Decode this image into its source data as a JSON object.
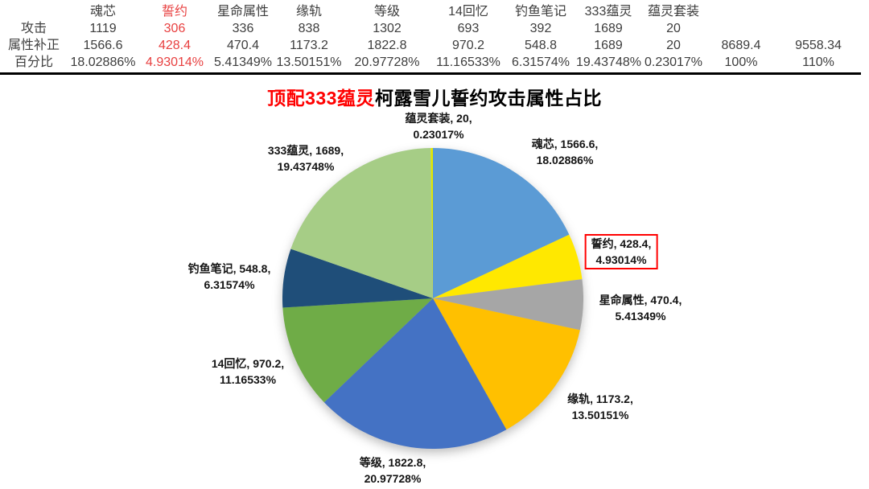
{
  "table": {
    "row_headers": [
      "攻击",
      "属性补正",
      "百分比"
    ],
    "columns": [
      {
        "label": "魂芯",
        "attack": "1119",
        "corrected": "1566.6",
        "percent": "18.02886%",
        "red": false
      },
      {
        "label": "誓约",
        "attack": "306",
        "corrected": "428.4",
        "percent": "4.93014%",
        "red": true
      },
      {
        "label": "星命属性",
        "attack": "336",
        "corrected": "470.4",
        "percent": "5.41349%",
        "red": false
      },
      {
        "label": "缘轨",
        "attack": "838",
        "corrected": "1173.2",
        "percent": "13.50151%",
        "red": false
      },
      {
        "label": "等级",
        "attack": "1302",
        "corrected": "1822.8",
        "percent": "20.97728%",
        "red": false
      },
      {
        "label": "14回忆",
        "attack": "693",
        "corrected": "970.2",
        "percent": "11.16533%",
        "red": false
      },
      {
        "label": "钓鱼笔记",
        "attack": "392",
        "corrected": "548.8",
        "percent": "6.31574%",
        "red": false
      },
      {
        "label": "333蕴灵",
        "attack": "1689",
        "corrected": "1689",
        "percent": "19.43748%",
        "red": false
      },
      {
        "label": "蕴灵套装",
        "attack": "20",
        "corrected": "20",
        "percent": "0.23017%",
        "red": false
      },
      {
        "label": "",
        "attack": "",
        "corrected": "8689.4",
        "percent": "100%",
        "red": false
      },
      {
        "label": "",
        "attack": "",
        "corrected": "9558.34",
        "percent": "110%",
        "red": false
      }
    ]
  },
  "chart": {
    "title_red": "顶配333蕴灵",
    "title_black": "柯露雪儿誓约攻击属性占比"
  },
  "colors": {
    "accent_red": "#ff0000",
    "table_red_text": "#e84040",
    "table_text": "#3d3d3d"
  },
  "chart_data": {
    "type": "pie",
    "title": "顶配333蕴灵柯露雪儿誓约攻击属性占比",
    "direction": "clockwise",
    "start_angle_deg": 0,
    "label_format": "name, value, percent%",
    "legend": "none",
    "series": [
      {
        "name": "魂芯",
        "value": 1566.6,
        "percent": 18.02886,
        "color": "#5B9BD5",
        "highlighted": false
      },
      {
        "name": "誓约",
        "value": 428.4,
        "percent": 4.93014,
        "color": "#FFE800",
        "highlighted": true
      },
      {
        "name": "星命属性",
        "value": 470.4,
        "percent": 5.41349,
        "color": "#A6A6A6",
        "highlighted": false
      },
      {
        "name": "缘轨",
        "value": 1173.2,
        "percent": 13.50151,
        "color": "#FFC000",
        "highlighted": false
      },
      {
        "name": "等级",
        "value": 1822.8,
        "percent": 20.97728,
        "color": "#4472C4",
        "highlighted": false
      },
      {
        "name": "14回忆",
        "value": 970.2,
        "percent": 11.16533,
        "color": "#6FAC47",
        "highlighted": false
      },
      {
        "name": "钓鱼笔记",
        "value": 548.8,
        "percent": 6.31574,
        "color": "#1F4E79",
        "highlighted": false
      },
      {
        "name": "333蕴灵",
        "value": 1689,
        "percent": 19.43748,
        "color": "#A6CD86",
        "highlighted": false
      },
      {
        "name": "蕴灵套装",
        "value": 20,
        "percent": 0.23017,
        "color": "#E2E800",
        "highlighted": false
      }
    ]
  }
}
